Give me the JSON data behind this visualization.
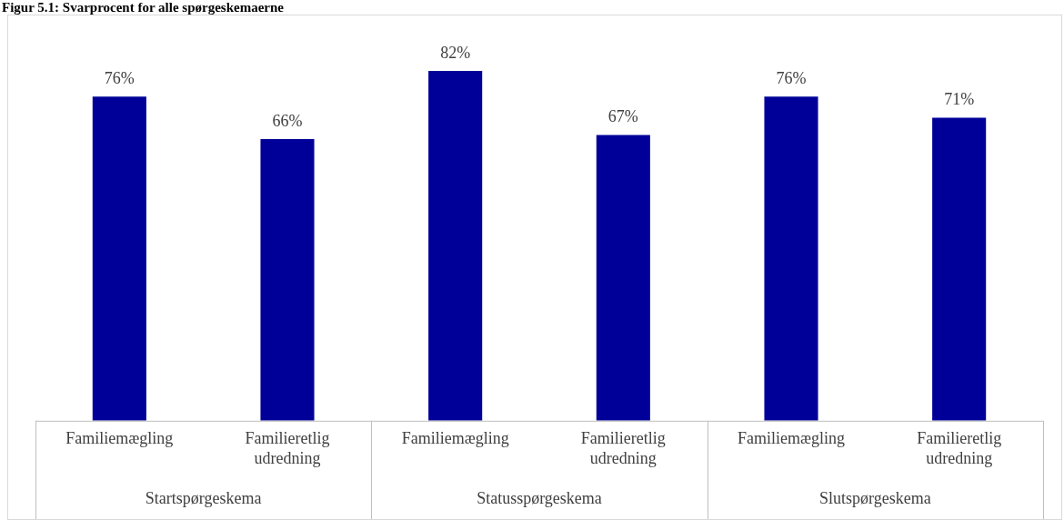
{
  "chart_data": {
    "type": "bar",
    "title": "Figur 5.1: Svarprocent for alle spørgeskemaerne",
    "categories": [
      "Familiemægling",
      "Familieretlig udredning",
      "Familiemægling",
      "Familieretlig udredning",
      "Familiemægling",
      "Familieretlig udredning"
    ],
    "values": [
      76,
      66,
      82,
      67,
      76,
      71
    ],
    "value_labels": [
      "76%",
      "66%",
      "82%",
      "67%",
      "76%",
      "71%"
    ],
    "color": "#000099",
    "ylim": [
      0,
      95
    ],
    "tick_labels": "x",
    "legend": false,
    "annotations": [
      "Startspørgeskema",
      "Statusspørgeskema",
      "Slutspørgeskema"
    ]
  }
}
